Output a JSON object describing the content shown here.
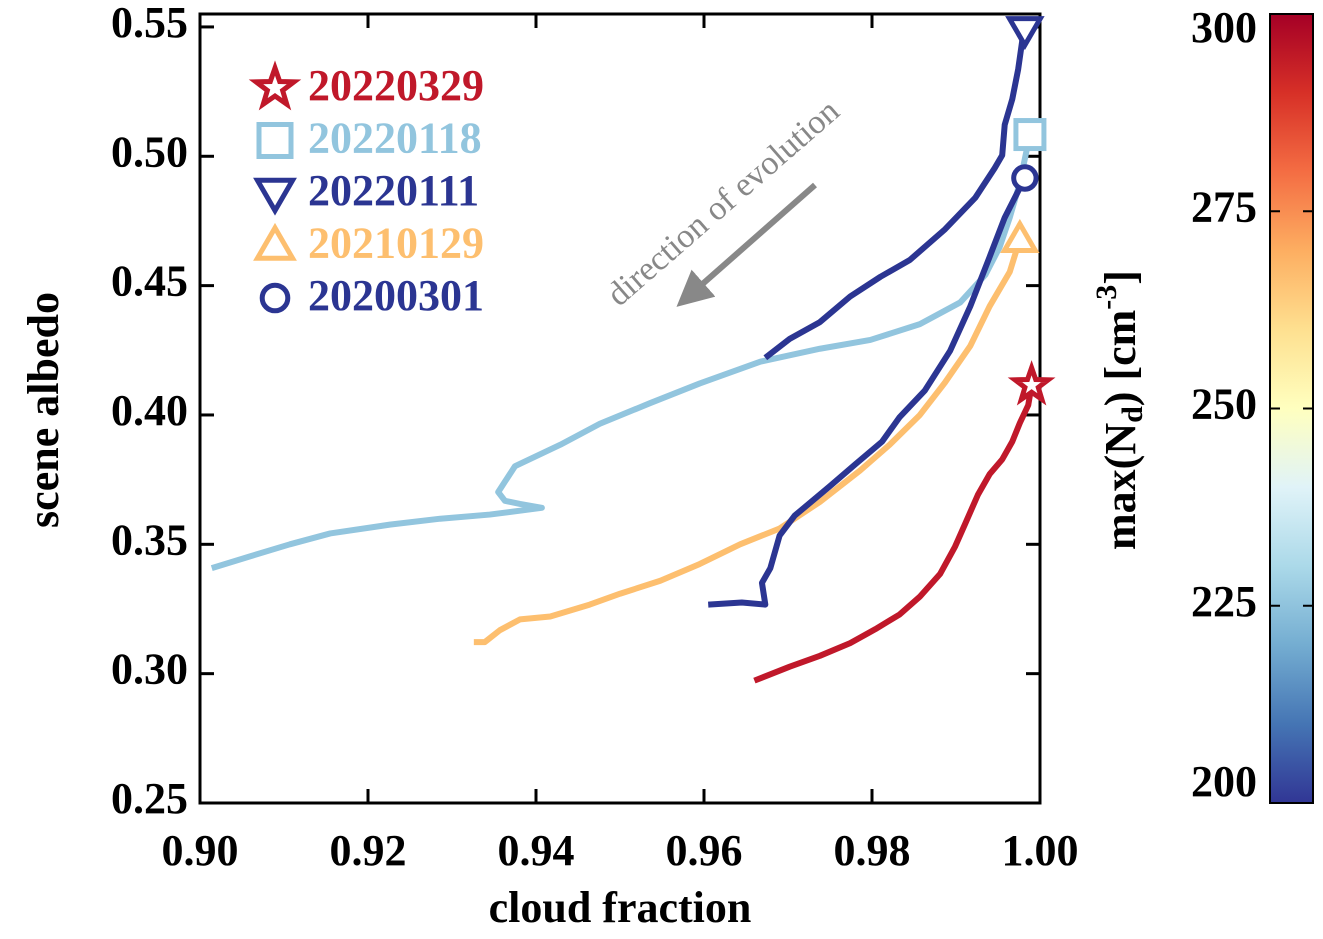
{
  "chart_data": {
    "type": "line",
    "x_label": "cloud fraction",
    "y_label": "scene albedo",
    "xlim": [
      0.9,
      1.0
    ],
    "xticks": [
      {
        "value": 0.9,
        "label": "0.90"
      },
      0.92,
      0.94,
      0.96,
      0.98,
      {
        "value": 1.0,
        "label": "1.00"
      }
    ],
    "ylim": [
      0.25,
      0.555
    ],
    "yticks": [
      0.25,
      {
        "value": 0.3,
        "label": "0.30"
      },
      0.35,
      {
        "value": 0.4,
        "label": "0.40"
      },
      0.45,
      {
        "value": 0.5,
        "label": "0.50"
      },
      0.55
    ],
    "annotation": {
      "text": "direction of evolution",
      "color": "#888888"
    },
    "series": [
      {
        "name": "20220329",
        "color": "#c0182a",
        "marker": "star",
        "x": [
          0.966,
          0.9702,
          0.9738,
          0.9774,
          0.9804,
          0.9833,
          0.9857,
          0.9881,
          0.9899,
          0.9911,
          0.9926,
          0.994,
          0.9955,
          0.9967,
          0.9976,
          0.9986,
          0.999
        ],
        "values": [
          0.2973,
          0.3027,
          0.3069,
          0.3118,
          0.3172,
          0.3229,
          0.3298,
          0.3385,
          0.3492,
          0.358,
          0.3691,
          0.3771,
          0.3828,
          0.3897,
          0.3969,
          0.4038,
          0.4115
        ]
      },
      {
        "name": "20220118",
        "color": "#92c5de",
        "marker": "square",
        "x": [
          0.9014,
          0.906,
          0.9107,
          0.9155,
          0.9226,
          0.9286,
          0.9345,
          0.9381,
          0.9407,
          0.9381,
          0.9363,
          0.9355,
          0.9375,
          0.9429,
          0.9476,
          0.9536,
          0.9595,
          0.9667,
          0.9738,
          0.9798,
          0.9857,
          0.9905,
          0.9935,
          0.9952,
          0.9964,
          0.9976,
          0.9988
        ],
        "values": [
          0.3408,
          0.3454,
          0.35,
          0.3542,
          0.3576,
          0.3599,
          0.3615,
          0.363,
          0.3641,
          0.3656,
          0.3668,
          0.3702,
          0.3802,
          0.3885,
          0.3966,
          0.4046,
          0.4122,
          0.4206,
          0.4256,
          0.429,
          0.4351,
          0.4435,
          0.4542,
          0.4649,
          0.4763,
          0.4897,
          0.5084
        ]
      },
      {
        "name": "20220111",
        "color": "#2b3592",
        "marker": "triangle-down",
        "x": [
          0.9673,
          0.9702,
          0.9738,
          0.9774,
          0.981,
          0.9845,
          0.9887,
          0.9923,
          0.9946,
          0.9955,
          0.9958,
          0.9967,
          0.9974,
          0.9979,
          0.9982
        ],
        "values": [
          0.4221,
          0.4294,
          0.4359,
          0.4458,
          0.4534,
          0.4599,
          0.4718,
          0.484,
          0.4954,
          0.5004,
          0.5122,
          0.5221,
          0.5336,
          0.545,
          0.5489
        ]
      },
      {
        "name": "20210129",
        "color": "#fdbf6f",
        "marker": "triangle-up",
        "x": [
          0.9326,
          0.9339,
          0.9357,
          0.9381,
          0.9417,
          0.9464,
          0.95,
          0.9548,
          0.9595,
          0.9643,
          0.969,
          0.9738,
          0.9786,
          0.9821,
          0.9857,
          0.9887,
          0.9917,
          0.994,
          0.9964,
          0.9976
        ],
        "values": [
          0.3122,
          0.3122,
          0.3168,
          0.321,
          0.3221,
          0.3267,
          0.3309,
          0.3359,
          0.3424,
          0.35,
          0.3561,
          0.3664,
          0.3786,
          0.3885,
          0.4,
          0.4126,
          0.4267,
          0.442,
          0.4553,
          0.4679
        ]
      },
      {
        "name": "20200301",
        "color": "#2b3592",
        "marker": "circle",
        "x": [
          0.9605,
          0.9645,
          0.9673,
          0.9669,
          0.9679,
          0.969,
          0.9708,
          0.975,
          0.978,
          0.9812,
          0.9833,
          0.9863,
          0.9893,
          0.9917,
          0.994,
          0.9958,
          0.9976,
          0.9982
        ],
        "values": [
          0.3267,
          0.3275,
          0.3267,
          0.3351,
          0.3408,
          0.3534,
          0.3611,
          0.3725,
          0.3809,
          0.3897,
          0.3992,
          0.4095,
          0.4248,
          0.442,
          0.4611,
          0.4763,
          0.4878,
          0.4916
        ]
      }
    ],
    "colorbar": {
      "label_parts": [
        "max(N",
        "d",
        ") [cm",
        "-3",
        "]"
      ],
      "lim": [
        200,
        300
      ],
      "ticks": [
        200,
        225,
        250,
        275,
        300
      ],
      "colormap": [
        "#313695",
        "#4575b4",
        "#74add1",
        "#abd9e9",
        "#e0f3f8",
        "#ffffbf",
        "#fee090",
        "#fdae61",
        "#f46d43",
        "#d73027",
        "#a50026"
      ]
    }
  }
}
